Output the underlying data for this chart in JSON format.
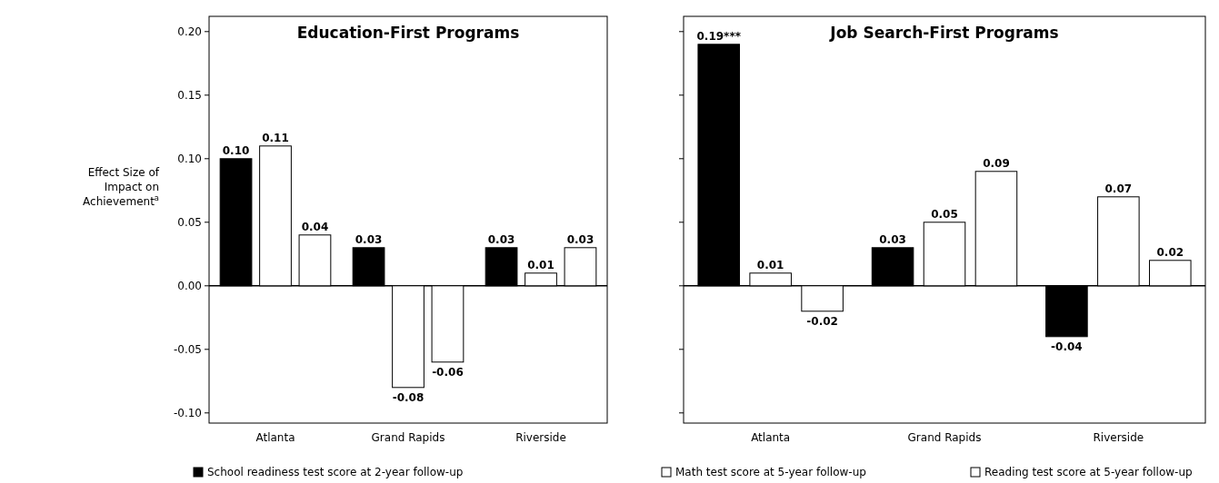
{
  "chart_data": [
    {
      "type": "bar",
      "title": "Education-First Programs",
      "ylabel": "Effect Size of Impact on Achievement$^{a}$",
      "categories": [
        "Atlanta",
        "Grand Rapids",
        "Riverside"
      ],
      "series": [
        {
          "name": "School readiness test score at 2-year follow-up",
          "color": "#000000",
          "values": [
            0.1,
            0.03,
            0.03
          ],
          "value_labels": [
            "0.10",
            "0.03",
            "0.03"
          ]
        },
        {
          "name": "Math test score at 5-year follow-up",
          "color": "#ffffff",
          "values": [
            0.11,
            -0.08,
            0.01
          ],
          "value_labels": [
            "0.11",
            "-0.08",
            "0.01"
          ]
        },
        {
          "name": "Reading test score at 5-year follow-up",
          "color": "#ffffff",
          "values": [
            0.04,
            -0.06,
            0.03
          ],
          "value_labels": [
            "0.04",
            "-0.06",
            "0.03"
          ]
        }
      ],
      "ylim": [
        -0.108,
        0.212
      ],
      "yticks": [
        {
          "value": -0.1,
          "label": "-0.10"
        },
        {
          "value": -0.05,
          "label": "-0.05"
        },
        {
          "value": 0,
          "label": "0.00"
        },
        {
          "value": 0.05,
          "label": "0.05"
        },
        {
          "value": 0.1,
          "label": "0.10"
        },
        {
          "value": 0.15,
          "label": "0.15"
        },
        {
          "value": 0.2,
          "label": "0.20"
        }
      ],
      "legend": "bottom"
    },
    {
      "type": "bar",
      "title": "Job Search-First Programs",
      "categories": [
        "Atlanta",
        "Grand Rapids",
        "Riverside"
      ],
      "series": [
        {
          "color": "#000000",
          "values": [
            0.19,
            0.03,
            -0.04
          ],
          "value_labels": [
            "0.19***",
            "0.03",
            "-0.04"
          ]
        },
        {
          "color": "#ffffff",
          "values": [
            0.01,
            0.05,
            0.07
          ],
          "value_labels": [
            "0.01",
            "0.05",
            "0.07"
          ]
        },
        {
          "color": "#ffffff",
          "values": [
            -0.02,
            0.09,
            0.02
          ],
          "value_labels": [
            "-0.02",
            "0.09",
            "0.02"
          ]
        }
      ],
      "ylim": [
        -0.108,
        0.212
      ],
      "yticks": [
        {
          "value": -0.1,
          "label": null
        },
        {
          "value": -0.05,
          "label": null
        },
        {
          "value": 0,
          "label": null
        },
        {
          "value": 0.05,
          "label": null
        },
        {
          "value": 0.1,
          "label": null
        },
        {
          "value": 0.15,
          "label": null
        },
        {
          "value": 0.2,
          "label": null
        }
      ],
      "tick_labels": "x"
    }
  ]
}
